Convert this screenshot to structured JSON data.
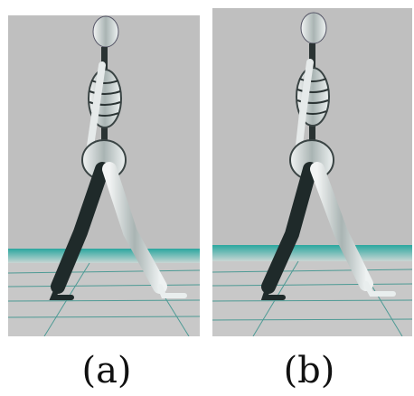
{
  "figure": {
    "panels": [
      {
        "id": "a",
        "caption": "(a)"
      },
      {
        "id": "b",
        "caption": "(b)"
      }
    ],
    "colors": {
      "background": "#bfbfbf",
      "floor_band": "#1f9a92",
      "floor_grid": "#2f8f88",
      "skeleton_light": "#e8ecec",
      "skeleton_dark": "#1f2a2a"
    }
  }
}
